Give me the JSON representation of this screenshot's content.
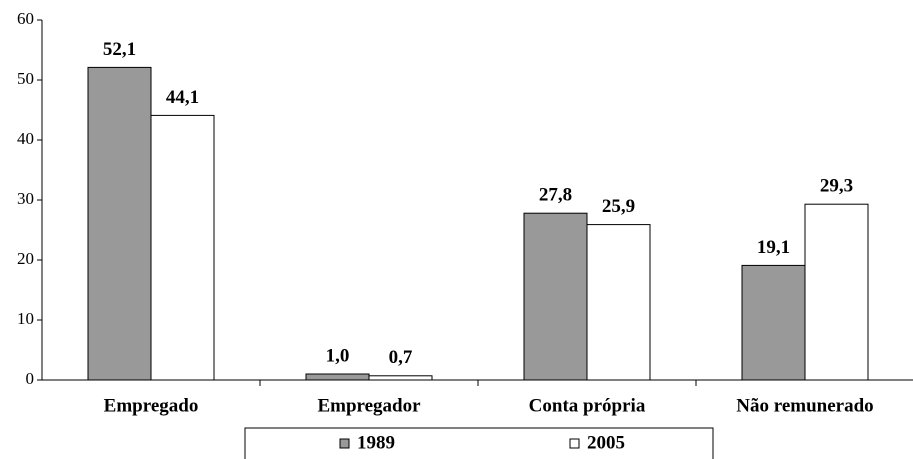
{
  "chart_data": {
    "type": "bar",
    "categories": [
      "Empregado",
      "Empregador",
      "Conta própria",
      "Não remunerado"
    ],
    "series": [
      {
        "name": "1989",
        "color": "#999999",
        "values": [
          52.1,
          1.0,
          27.8,
          19.1
        ],
        "value_labels": [
          "52,1",
          "1,0",
          "27,8",
          "19,1"
        ]
      },
      {
        "name": "2005",
        "color": "#ffffff",
        "values": [
          44.1,
          0.7,
          25.9,
          29.3
        ],
        "value_labels": [
          "44,1",
          "0,7",
          "25,9",
          "29,3"
        ]
      }
    ],
    "ylim": [
      0,
      60
    ],
    "yticks": [
      0,
      10,
      20,
      30,
      40,
      50,
      60
    ],
    "grid": false,
    "legend": "bottom"
  }
}
